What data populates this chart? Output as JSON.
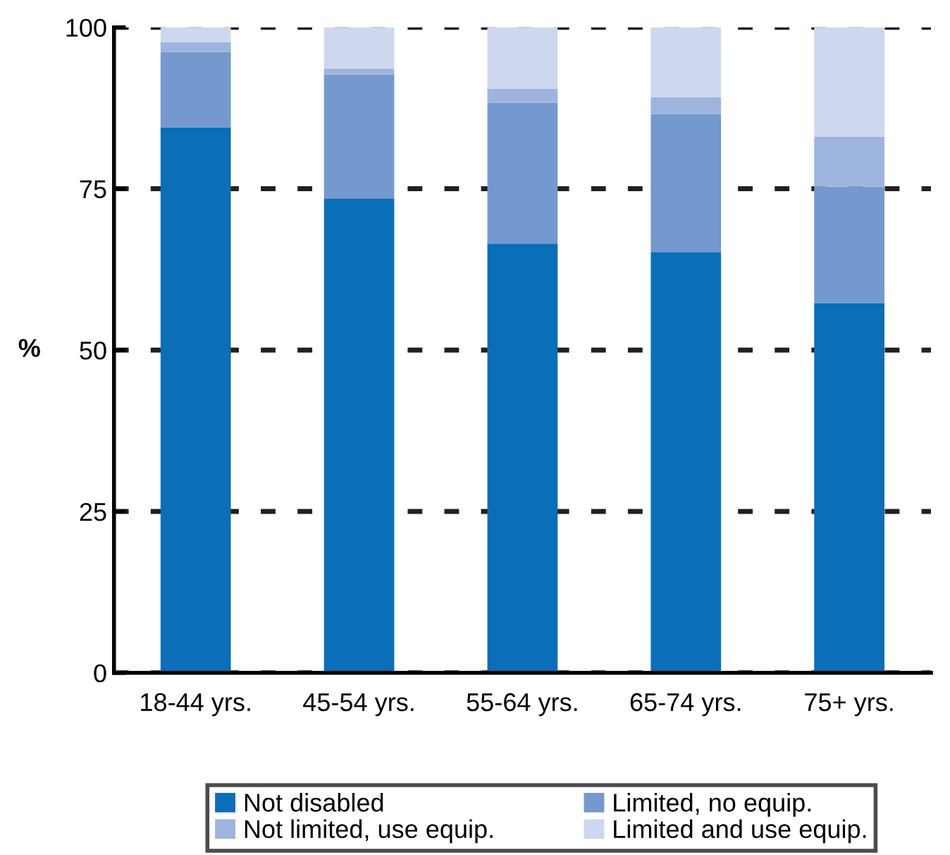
{
  "chart_data": {
    "type": "bar",
    "stacked": true,
    "ylabel": "%",
    "categories": [
      "18-44 yrs.",
      "45-54 yrs.",
      "55-64 yrs.",
      "65-74 yrs.",
      "75+ yrs."
    ],
    "series": [
      {
        "name": "Not disabled",
        "color": "#0a6eb8",
        "values": [
          84.5,
          73.5,
          66.5,
          65.2,
          57.3
        ]
      },
      {
        "name": "Limited, no equip.",
        "color": "#7499cf",
        "values": [
          11.7,
          19.2,
          21.8,
          21.4,
          18.0
        ]
      },
      {
        "name": "Not limited, use equip.",
        "color": "#9db5de",
        "values": [
          1.5,
          0.9,
          2.2,
          2.6,
          7.8
        ]
      },
      {
        "name": "Limited and use equip.",
        "color": "#cdd8ee",
        "values": [
          2.3,
          6.4,
          9.5,
          10.8,
          16.9
        ]
      }
    ],
    "ylim": [
      0,
      100
    ],
    "yticks": [
      0,
      25,
      50,
      75,
      100
    ],
    "grid": "y",
    "legend": "bottom"
  }
}
